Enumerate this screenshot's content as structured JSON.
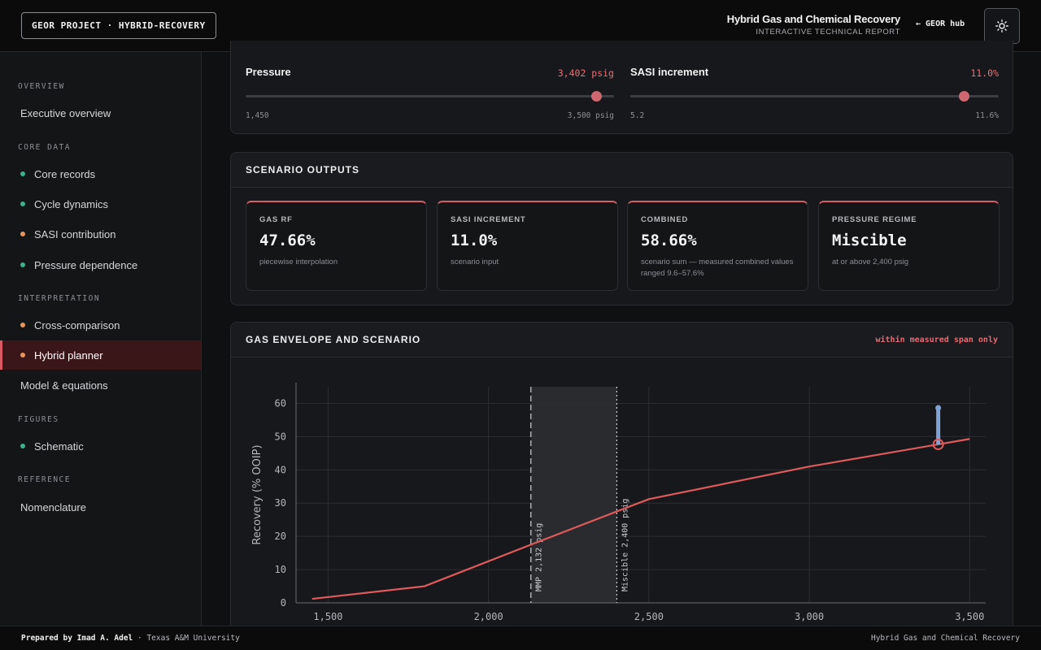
{
  "header": {
    "project_badge": "GEOR PROJECT · HYBRID-RECOVERY",
    "title": "Hybrid Gas and Chemical Recovery",
    "subtitle": "INTERACTIVE TECHNICAL REPORT",
    "hub_arrow": "←",
    "hub_label": "GEOR hub",
    "theme_icon": "sun-icon"
  },
  "sidebar": {
    "sections": [
      {
        "title": "OVERVIEW",
        "items": [
          {
            "label": "Executive overview",
            "dot": null,
            "active": false
          }
        ]
      },
      {
        "title": "CORE DATA",
        "items": [
          {
            "label": "Core records",
            "dot": "#3bb38a",
            "active": false
          },
          {
            "label": "Cycle dynamics",
            "dot": "#3bb38a",
            "active": false
          },
          {
            "label": "SASI contribution",
            "dot": "#e8955a",
            "active": false
          },
          {
            "label": "Pressure dependence",
            "dot": "#3bb38a",
            "active": false
          }
        ]
      },
      {
        "title": "INTERPRETATION",
        "items": [
          {
            "label": "Cross-comparison",
            "dot": "#e8955a",
            "active": false
          },
          {
            "label": "Hybrid planner",
            "dot": "#e8955a",
            "active": true
          },
          {
            "label": "Model & equations",
            "dot": null,
            "active": false
          }
        ]
      },
      {
        "title": "FIGURES",
        "items": [
          {
            "label": "Schematic",
            "dot": "#3bb38a",
            "active": false
          }
        ]
      },
      {
        "title": "REFERENCE",
        "items": [
          {
            "label": "Nomenclature",
            "dot": null,
            "active": false
          }
        ]
      }
    ]
  },
  "controls": {
    "pressure": {
      "label": "Pressure",
      "value_text": "3,402 psig",
      "min_text": "1,450",
      "max_text": "3,500 psig",
      "min": 1450,
      "max": 3500,
      "value": 3402
    },
    "sasi": {
      "label": "SASI increment",
      "value_text": "11.0%",
      "min_text": "5.2",
      "max_text": "11.6%",
      "min": 5.2,
      "max": 11.6,
      "value": 11.0
    }
  },
  "outputs": {
    "title": "SCENARIO OUTPUTS",
    "cards": [
      {
        "label": "GAS RF",
        "value": "47.66%",
        "note": "piecewise interpolation"
      },
      {
        "label": "SASI INCREMENT",
        "value": "11.0%",
        "note": "scenario input"
      },
      {
        "label": "COMBINED",
        "value": "58.66%",
        "note": "scenario sum — measured combined values ranged 9.6–57.6%"
      },
      {
        "label": "PRESSURE REGIME",
        "value": "Miscible",
        "note": "at or above 2,400 psig"
      }
    ]
  },
  "envelope": {
    "title": "GAS ENVELOPE AND SCENARIO",
    "note": "within measured span only"
  },
  "chart_data": {
    "type": "line",
    "ylabel": "Recovery (% OOIP)",
    "xlabel": "",
    "xlim": [
      1400,
      3550
    ],
    "ylim": [
      0,
      65
    ],
    "xticks": [
      1500,
      2000,
      2500,
      3000,
      3500
    ],
    "xtick_labels": [
      "1,500",
      "2,000",
      "2,500",
      "3,000",
      "3,500"
    ],
    "yticks": [
      0,
      10,
      20,
      30,
      40,
      50,
      60
    ],
    "series": [
      {
        "x": [
          1450,
          1800,
          2132,
          2400,
          2500,
          3000,
          3500
        ],
        "y": [
          1.2,
          5.0,
          17.5,
          27.5,
          31.2,
          41.0,
          49.3
        ],
        "color": "#e05a5a"
      }
    ],
    "shaded_band": {
      "x": [
        2132,
        2400
      ],
      "color": "#2a2b2e"
    },
    "reference_lines": [
      {
        "x": 2132,
        "label": "MMP 2,132 psig",
        "style": "dashed"
      },
      {
        "x": 2400,
        "label": "Miscible 2,400 psig",
        "style": "dotted"
      }
    ],
    "scenario": {
      "x": 3402,
      "gas_rf": 47.66,
      "combined": 58.66,
      "marker_color": "#e05a5a",
      "bar_color": "#7fa3d6"
    },
    "grid": true
  },
  "footer": {
    "prepared_by": "Prepared by Imad A. Adel",
    "institution": "· Texas A&M University",
    "right": "Hybrid Gas and Chemical Recovery"
  }
}
